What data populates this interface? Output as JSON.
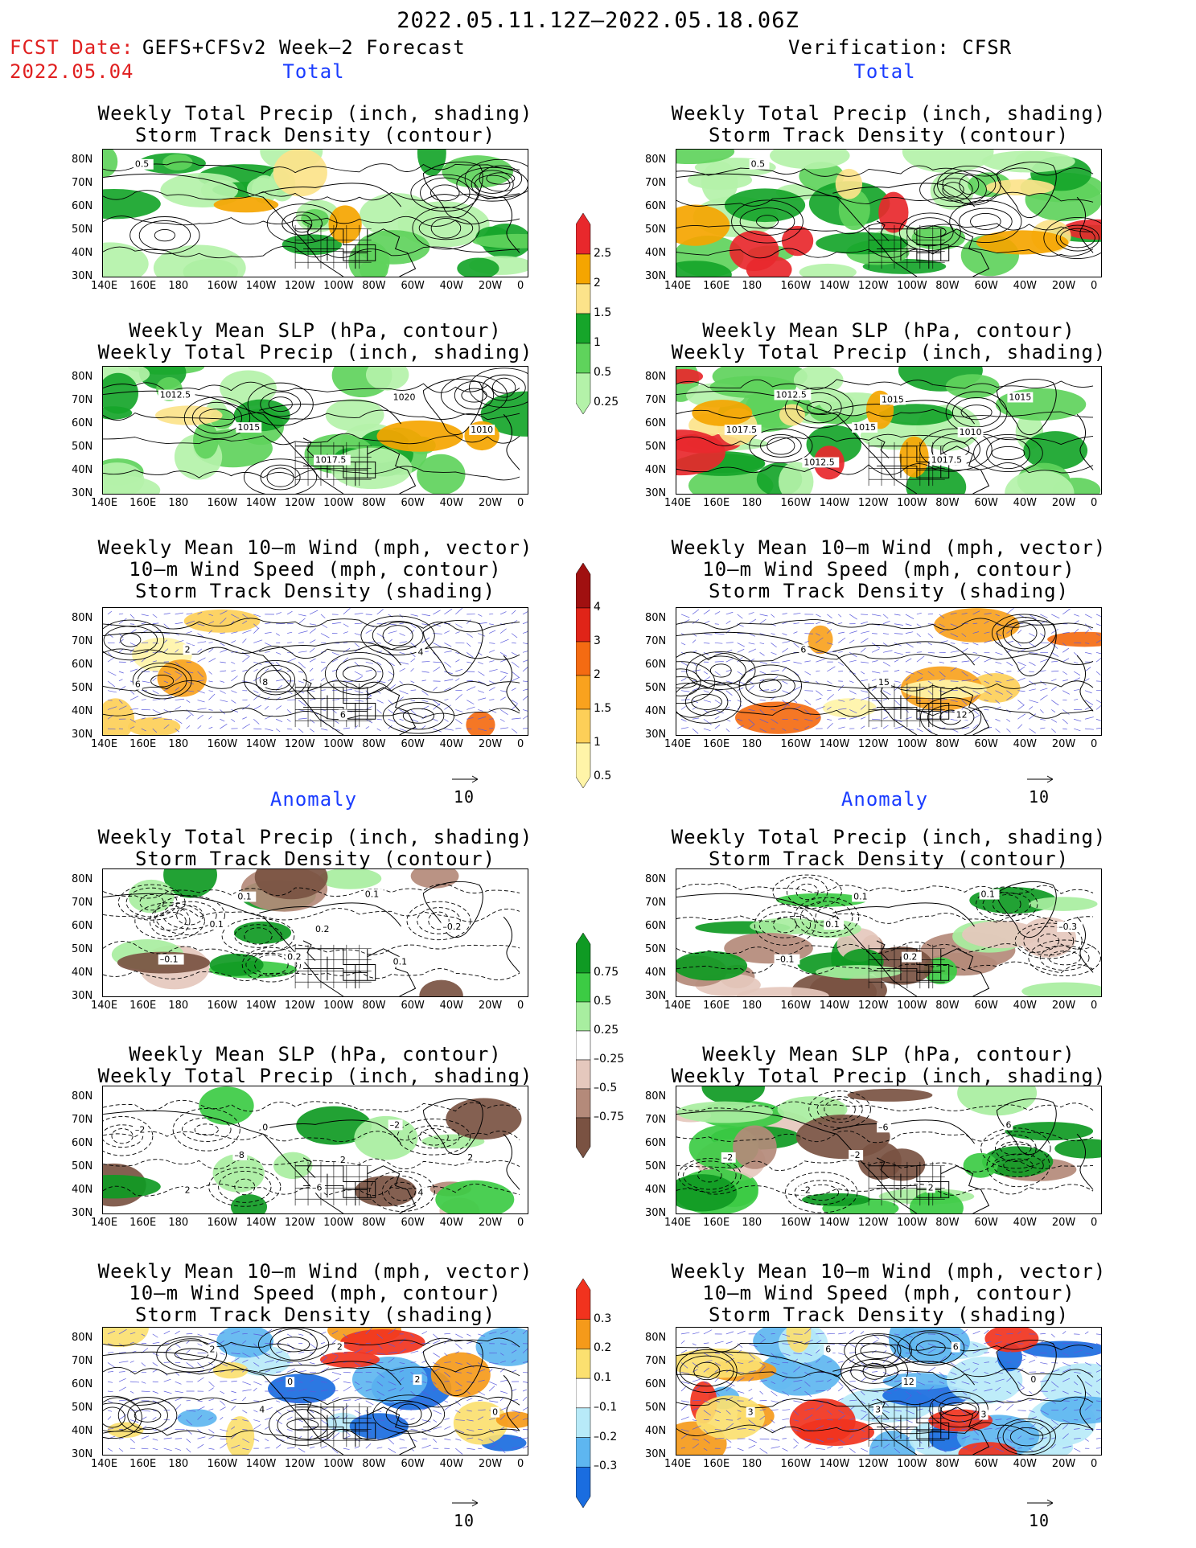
{
  "header": {
    "title": "2022.05.11.12Z–2022.05.18.06Z",
    "fcst_date_label": "FCST Date:",
    "forecast_label": "GEFS+CFSv2 Week–2 Forecast",
    "fcst_date": "2022.05.04",
    "verification_label": "Verification: CFSR"
  },
  "sections": {
    "total": "Total",
    "anomaly": "Anomaly"
  },
  "panel_titles": {
    "precip_storm": [
      "Weekly Total Precip (inch, shading)",
      "Storm Track Density (contour)"
    ],
    "slp_precip": [
      "Weekly Mean SLP (hPa, contour)",
      "Weekly Total Precip (inch, shading)"
    ],
    "wind_storm": [
      "Weekly Mean 10–m Wind (mph, vector)",
      "10–m Wind Speed (mph, contour)",
      "Storm Track Density (shading)"
    ]
  },
  "axes": {
    "lat_labels": [
      "80N",
      "70N",
      "60N",
      "50N",
      "40N",
      "30N"
    ],
    "lon_labels": [
      "140E",
      "160E",
      "180",
      "160W",
      "140W",
      "120W",
      "100W",
      "80W",
      "60W",
      "40W",
      "20W",
      "0"
    ]
  },
  "vector_reference": "10",
  "colorbars": {
    "precip_total": {
      "labels": [
        "2.5",
        "2",
        "1.5",
        "1",
        "0.5",
        "0.25"
      ],
      "colors": [
        "#e8282c",
        "#f5a500",
        "#fce38a",
        "#16a52a",
        "#5fd35c",
        "#b4f2a9"
      ]
    },
    "storm_total": {
      "labels": [
        "4",
        "3",
        "2",
        "1.5",
        "1",
        "0.5"
      ],
      "colors": [
        "#a01010",
        "#e02418",
        "#f46b12",
        "#f9a21e",
        "#fdcf58",
        "#fff4a8"
      ]
    },
    "precip_anom": {
      "labels": [
        "0.75",
        "0.5",
        "0.25",
        "–0.25",
        "–0.5",
        "–0.75"
      ],
      "colors": [
        "#0f9a23",
        "#3ccb44",
        "#a8eea0",
        "#ffffff",
        "#e5c8bd",
        "#b48a7a",
        "#7a5242"
      ]
    },
    "storm_anom": {
      "labels": [
        "0.3",
        "0.2",
        "0.1",
        "–0.1",
        "–0.2",
        "–0.3"
      ],
      "colors": [
        "#f1331e",
        "#f59a1a",
        "#fbe070",
        "#ffffff",
        "#b8eaf8",
        "#5eb6f0",
        "#1a6de0"
      ]
    }
  },
  "contour_labels": {
    "L_precip_total": [
      "0.5"
    ],
    "R_precip_total": [
      "0.5"
    ],
    "L_slp_total": [
      "1012.5",
      "1015",
      "1017.5",
      "1020",
      "1010"
    ],
    "R_slp_total": [
      "1012.5",
      "1015",
      "1017.5",
      "1015",
      "1017.5",
      "1012.5",
      "1015",
      "1010"
    ],
    "L_wind_total": [
      "2",
      "8",
      "6",
      "4",
      "6"
    ],
    "R_wind_total": [
      "6",
      "15",
      "12"
    ],
    "L_precip_anom": [
      "0.1",
      "0.2",
      "0.1",
      "–0.2",
      "–0.1",
      "0.1",
      "0.2",
      "0.1"
    ],
    "R_precip_anom": [
      "0.1",
      "0.2",
      "0.1",
      "–0.3",
      "–0.1",
      "0.1"
    ],
    "L_slp_anom": [
      "–8",
      "–6",
      "–2",
      "2",
      "2",
      "0",
      "2",
      "4",
      "–2"
    ],
    "R_slp_anom": [
      "–2",
      "2",
      "6",
      "–2",
      "–2",
      "–6"
    ],
    "L_wind_anom": [
      "4",
      "2",
      "2",
      "0",
      "2",
      "0"
    ],
    "R_wind_anom": [
      "3",
      "6",
      "0",
      "3",
      "6",
      "12",
      "3"
    ]
  }
}
